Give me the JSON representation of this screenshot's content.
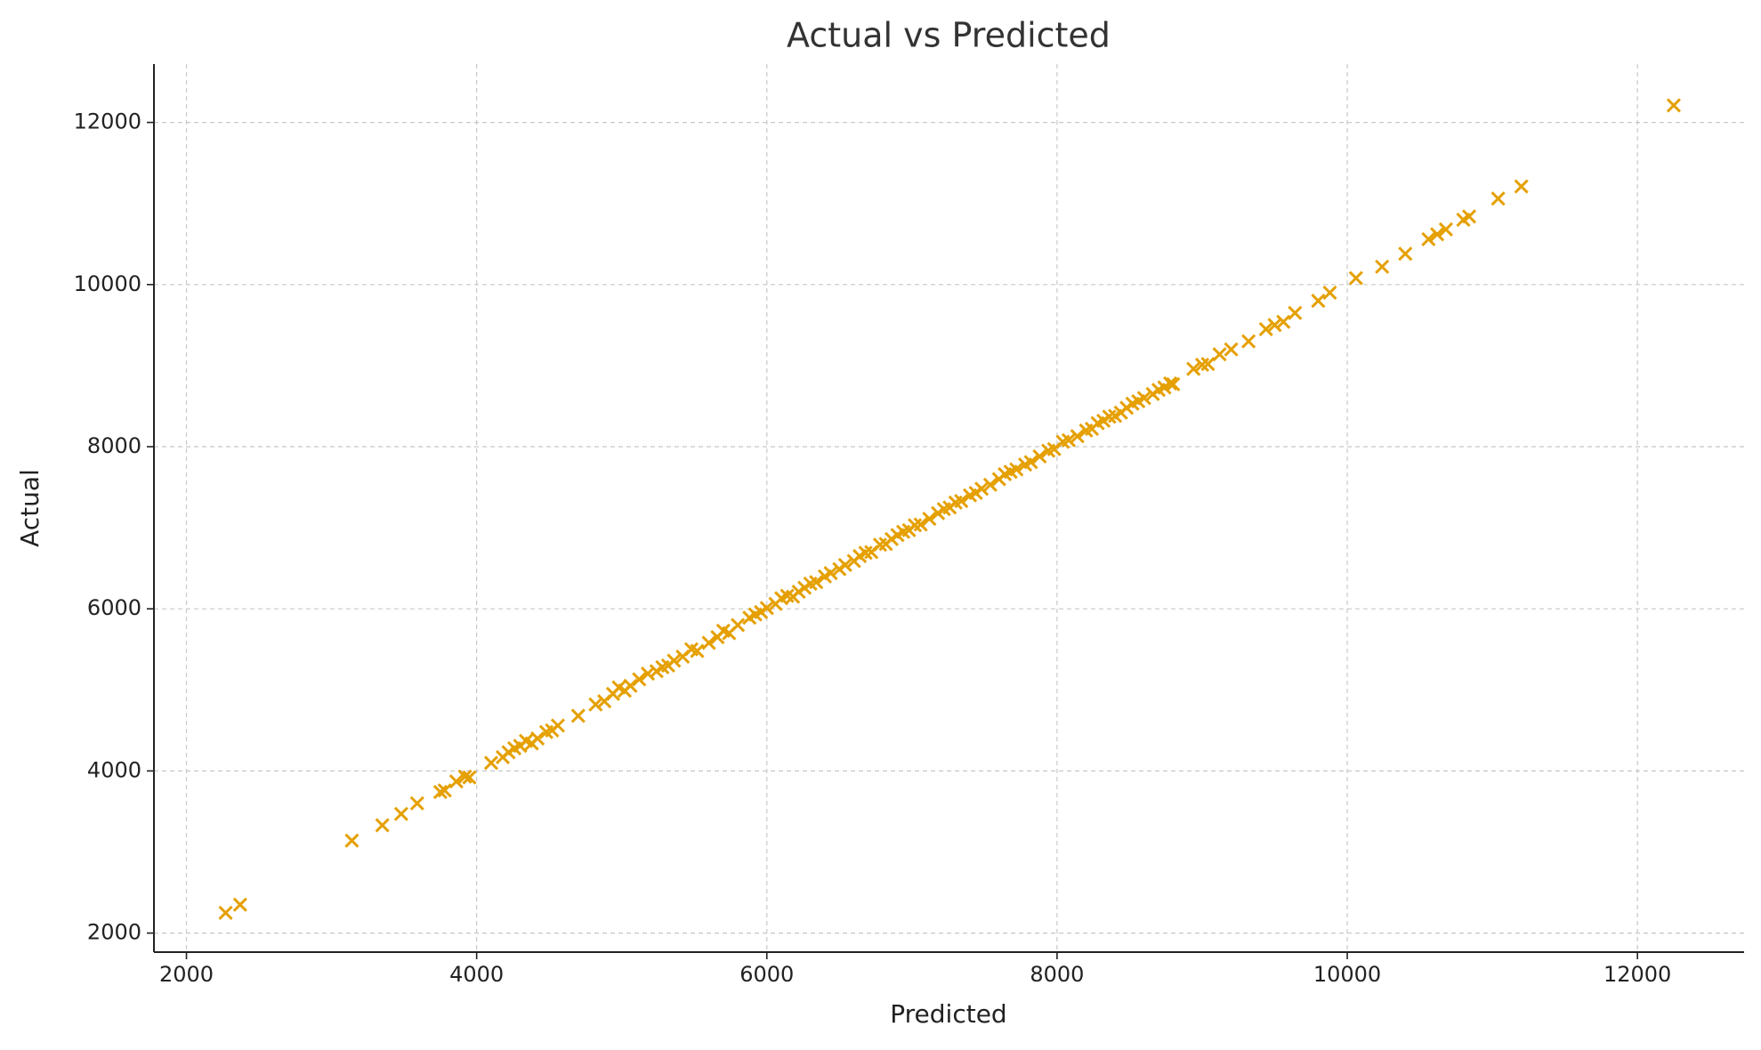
{
  "chart_data": {
    "type": "scatter",
    "title": "Actual vs Predicted",
    "x_label": "Predicted",
    "y_label": "Actual",
    "color": "#e5a000",
    "marker": "x",
    "grid": true,
    "xlim": [
      1776,
      12735
    ],
    "ylim": [
      1765,
      12720
    ],
    "xticks": [
      2000,
      4000,
      6000,
      8000,
      10000,
      12000
    ],
    "yticks": [
      2000,
      4000,
      6000,
      8000,
      10000,
      12000
    ],
    "x": [
      2270,
      2370,
      3140,
      3350,
      3480,
      3590,
      3750,
      3780,
      3860,
      3920,
      3950,
      4100,
      4180,
      4220,
      4260,
      4300,
      4340,
      4380,
      4420,
      4480,
      4520,
      4560,
      4700,
      4820,
      4880,
      4940,
      4980,
      5020,
      5060,
      5120,
      5180,
      5240,
      5280,
      5320,
      5360,
      5420,
      5480,
      5520,
      5600,
      5660,
      5700,
      5740,
      5800,
      5880,
      5920,
      5960,
      6000,
      6060,
      6100,
      6140,
      6180,
      6220,
      6260,
      6300,
      6340,
      6400,
      6440,
      6500,
      6540,
      6600,
      6640,
      6680,
      6720,
      6780,
      6820,
      6860,
      6900,
      6940,
      6980,
      7020,
      7060,
      7120,
      7180,
      7220,
      7260,
      7300,
      7340,
      7400,
      7440,
      7480,
      7540,
      7600,
      7640,
      7680,
      7720,
      7780,
      7820,
      7880,
      7940,
      7980,
      8040,
      8080,
      8140,
      8200,
      8240,
      8280,
      8320,
      8360,
      8400,
      8440,
      8480,
      8520,
      8560,
      8600,
      8660,
      8700,
      8740,
      8780,
      8800,
      8940,
      9000,
      9040,
      9120,
      9200,
      9320,
      9440,
      9500,
      9560,
      9640,
      9800,
      9880,
      10060,
      10240,
      10400,
      10560,
      10620,
      10680,
      10800,
      10840,
      11040,
      11200,
      12250
    ],
    "values": [
      2250,
      2350,
      3140,
      3330,
      3470,
      3600,
      3740,
      3760,
      3870,
      3930,
      3920,
      4100,
      4170,
      4230,
      4280,
      4310,
      4370,
      4340,
      4400,
      4480,
      4500,
      4560,
      4680,
      4820,
      4860,
      4950,
      5030,
      4990,
      5050,
      5130,
      5200,
      5230,
      5280,
      5300,
      5360,
      5410,
      5500,
      5480,
      5580,
      5650,
      5730,
      5700,
      5800,
      5890,
      5930,
      5960,
      6010,
      6060,
      6130,
      6160,
      6150,
      6210,
      6260,
      6310,
      6330,
      6400,
      6440,
      6490,
      6540,
      6590,
      6650,
      6690,
      6700,
      6790,
      6800,
      6860,
      6910,
      6950,
      6970,
      7030,
      7040,
      7110,
      7180,
      7230,
      7250,
      7310,
      7330,
      7400,
      7430,
      7480,
      7530,
      7600,
      7660,
      7690,
      7720,
      7780,
      7810,
      7880,
      7950,
      7970,
      8060,
      8080,
      8130,
      8200,
      8220,
      8290,
      8320,
      8370,
      8380,
      8420,
      8480,
      8530,
      8560,
      8600,
      8650,
      8700,
      8730,
      8780,
      8770,
      8960,
      9010,
      9020,
      9140,
      9200,
      9300,
      9450,
      9500,
      9540,
      9650,
      9800,
      9900,
      10080,
      10220,
      10380,
      10560,
      10620,
      10680,
      10800,
      10840,
      11060,
      11210,
      12210
    ]
  }
}
